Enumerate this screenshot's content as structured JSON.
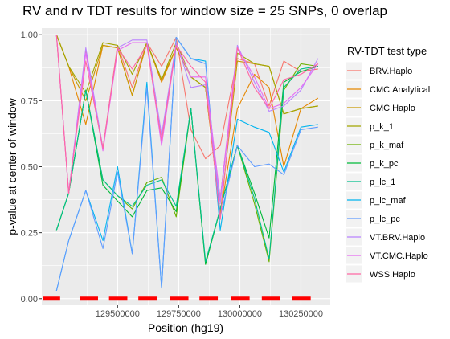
{
  "chart_data": {
    "type": "line",
    "title": "RV and rv TDT results for window size = 25 SNPs, 0 overlap",
    "xlabel": "Position (hg19)",
    "ylabel": "p-value at center of window",
    "xlim": [
      129190000,
      130370000
    ],
    "ylim": [
      -0.025,
      1.025
    ],
    "x_ticks": [
      129500000,
      129750000,
      130000000,
      130250000
    ],
    "x_tick_labels": [
      "129500000",
      "129750000",
      "130000000",
      "130250000"
    ],
    "y_ticks": [
      0,
      0.25,
      0.5,
      0.75,
      1.0
    ],
    "y_tick_labels": [
      "0.00",
      "0.25",
      "0.50",
      "0.75",
      "1.00"
    ],
    "grid": true,
    "legend": {
      "title": "RV-TDT test type",
      "position": "right"
    },
    "x": [
      129250000,
      129300000,
      129370000,
      129440000,
      129500000,
      129560000,
      129620000,
      129680000,
      129740000,
      129800000,
      129860000,
      129920000,
      129990000,
      130060000,
      130120000,
      130180000,
      130250000,
      130320000
    ],
    "series": [
      {
        "name": "BRV.Haplo",
        "color": "#F8766D",
        "values": [
          1.0,
          0.4,
          0.94,
          0.57,
          0.96,
          0.8,
          0.97,
          0.88,
          0.99,
          0.64,
          0.53,
          0.58,
          0.91,
          0.89,
          0.73,
          0.9,
          0.86,
          0.87
        ]
      },
      {
        "name": "CMC.Analytical",
        "color": "#E58700",
        "values": [
          1.0,
          0.88,
          0.66,
          0.96,
          0.95,
          0.77,
          0.97,
          0.82,
          0.95,
          0.84,
          0.8,
          0.32,
          0.72,
          0.85,
          0.8,
          0.5,
          0.72,
          0.76
        ]
      },
      {
        "name": "CMC.Haplo",
        "color": "#C99800",
        "values": [
          1.0,
          0.88,
          0.75,
          0.96,
          0.95,
          0.77,
          0.97,
          0.83,
          0.95,
          0.84,
          0.8,
          0.32,
          0.9,
          0.89,
          0.88,
          0.7,
          0.72,
          0.73
        ]
      },
      {
        "name": "p_k_1",
        "color": "#A3A500",
        "values": [
          1.0,
          0.88,
          0.78,
          0.97,
          0.96,
          0.85,
          0.97,
          0.83,
          0.97,
          0.84,
          0.8,
          0.38,
          0.93,
          0.89,
          0.88,
          0.7,
          0.72,
          0.73
        ]
      },
      {
        "name": "p_k_maf",
        "color": "#6BB100",
        "values": [
          0.26,
          0.4,
          0.79,
          0.45,
          0.39,
          0.34,
          0.44,
          0.46,
          0.31,
          0.72,
          0.13,
          0.34,
          0.58,
          0.36,
          0.14,
          0.79,
          0.89,
          0.88
        ]
      },
      {
        "name": "p_k_pc",
        "color": "#00BA38",
        "values": [
          0.26,
          0.4,
          0.79,
          0.43,
          0.37,
          0.31,
          0.41,
          0.42,
          0.33,
          0.72,
          0.13,
          0.34,
          0.58,
          0.4,
          0.23,
          0.82,
          0.86,
          0.88
        ]
      },
      {
        "name": "p_lc_1",
        "color": "#00C08B",
        "values": [
          0.26,
          0.4,
          0.79,
          0.45,
          0.39,
          0.35,
          0.43,
          0.45,
          0.35,
          0.72,
          0.14,
          0.34,
          0.58,
          0.38,
          0.15,
          0.8,
          0.87,
          0.88
        ]
      },
      {
        "name": "p_lc_maf",
        "color": "#00B4EF",
        "values": [
          0.03,
          0.22,
          0.41,
          0.22,
          0.5,
          0.17,
          0.82,
          0.04,
          0.99,
          0.91,
          0.9,
          0.26,
          0.68,
          0.65,
          0.63,
          0.48,
          0.65,
          0.66
        ]
      },
      {
        "name": "p_lc_pc",
        "color": "#619CFF",
        "values": [
          0.03,
          0.22,
          0.41,
          0.19,
          0.48,
          0.17,
          0.8,
          0.04,
          0.99,
          0.91,
          0.89,
          0.31,
          0.58,
          0.5,
          0.51,
          0.47,
          0.64,
          0.65
        ]
      },
      {
        "name": "VT.BRV.Haplo",
        "color": "#B983FF",
        "values": [
          1.0,
          0.4,
          0.95,
          0.57,
          0.95,
          0.98,
          0.98,
          0.62,
          0.97,
          0.8,
          0.81,
          0.36,
          0.96,
          0.82,
          0.71,
          0.73,
          0.79,
          0.91
        ]
      },
      {
        "name": "VT.CMC.Haplo",
        "color": "#E76BF3",
        "values": [
          1.0,
          0.4,
          0.93,
          0.56,
          0.94,
          0.97,
          0.97,
          0.58,
          0.96,
          0.84,
          0.84,
          0.38,
          0.95,
          0.84,
          0.72,
          0.74,
          0.8,
          0.89
        ]
      },
      {
        "name": "WSS.Haplo",
        "color": "#FF67A4",
        "values": [
          1.0,
          0.4,
          0.9,
          0.57,
          0.95,
          0.87,
          0.96,
          0.6,
          0.96,
          0.88,
          0.82,
          0.3,
          0.95,
          0.8,
          0.72,
          0.83,
          0.85,
          0.89
        ]
      }
    ],
    "baseline_segments": {
      "color": "#FF0000",
      "y": 0,
      "x_ranges": [
        [
          129195000,
          129265000
        ],
        [
          129345000,
          129420000
        ],
        [
          129465000,
          129540000
        ],
        [
          129585000,
          129660000
        ],
        [
          129715000,
          129790000
        ],
        [
          129835000,
          129910000
        ],
        [
          129965000,
          130040000
        ],
        [
          130090000,
          130165000
        ],
        [
          130215000,
          130290000
        ]
      ]
    }
  }
}
